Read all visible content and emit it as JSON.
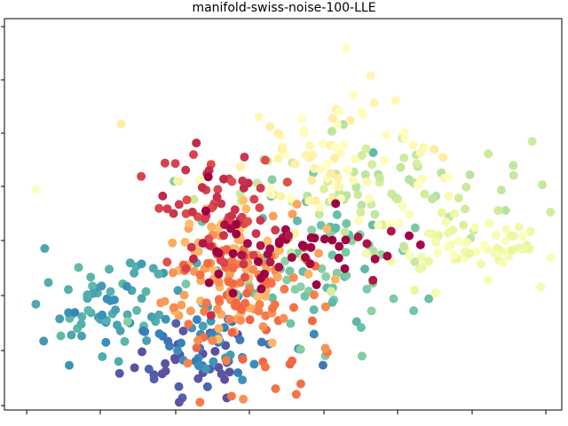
{
  "chart_data": {
    "type": "scatter",
    "title": "manifold-swiss-noise-100-LLE",
    "xlabel": "",
    "ylabel": "",
    "xlim": [
      0,
      100
    ],
    "ylim": [
      0,
      100
    ],
    "grid": false,
    "legend": "none",
    "colormap": "Spectral",
    "color_stops": [
      "#9e0142",
      "#d53e4f",
      "#f46d43",
      "#fdae61",
      "#fee08b",
      "#ffffbf",
      "#e6f598",
      "#abdda4",
      "#66c2a5",
      "#3288bd",
      "#5e4fa2"
    ],
    "tick_labels_visible": false,
    "clusters": [
      {
        "name": "purple",
        "color_value": 1.0,
        "count": 35,
        "cx": 33,
        "cy": 12,
        "sx": 6,
        "sy": 5
      },
      {
        "name": "blue-left",
        "color_value": 0.85,
        "count": 70,
        "cx": 18,
        "cy": 26,
        "sx": 7,
        "sy": 6
      },
      {
        "name": "blue-mid",
        "color_value": 0.9,
        "count": 45,
        "cx": 37,
        "cy": 18,
        "sx": 7,
        "sy": 6
      },
      {
        "name": "teal",
        "color_value": 0.78,
        "count": 75,
        "cx": 56,
        "cy": 38,
        "sx": 10,
        "sy": 10
      },
      {
        "name": "green",
        "color_value": 0.65,
        "count": 80,
        "cx": 64,
        "cy": 54,
        "sx": 14,
        "sy": 9
      },
      {
        "name": "lightgreen",
        "color_value": 0.55,
        "count": 60,
        "cx": 82,
        "cy": 42,
        "sx": 8,
        "sy": 4
      },
      {
        "name": "yellow",
        "color_value": 0.48,
        "count": 85,
        "cx": 58,
        "cy": 64,
        "sx": 13,
        "sy": 9
      },
      {
        "name": "lightorange",
        "color_value": 0.3,
        "count": 95,
        "cx": 40,
        "cy": 36,
        "sx": 7,
        "sy": 9
      },
      {
        "name": "orange",
        "color_value": 0.22,
        "count": 95,
        "cx": 43,
        "cy": 29,
        "sx": 7,
        "sy": 9
      },
      {
        "name": "red",
        "color_value": 0.1,
        "count": 70,
        "cx": 38,
        "cy": 50,
        "sx": 6,
        "sy": 8
      },
      {
        "name": "crimson",
        "color_value": 0.0,
        "count": 55,
        "cx": 52,
        "cy": 42,
        "sx": 10,
        "sy": 5
      }
    ]
  }
}
